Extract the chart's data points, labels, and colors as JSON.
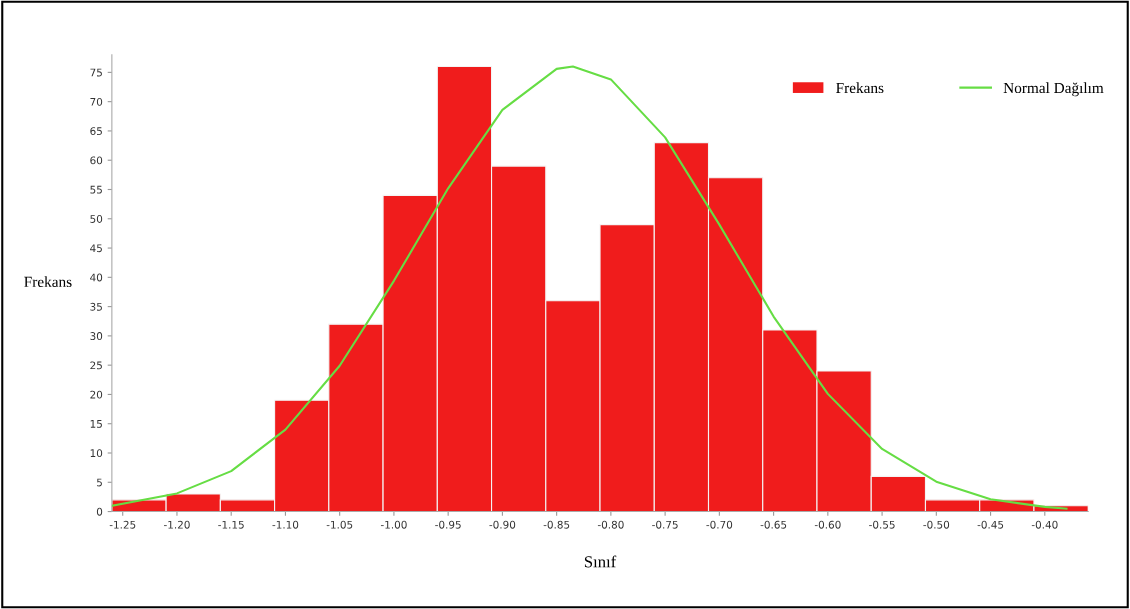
{
  "chart_data": {
    "type": "histogram",
    "xlabel": "Sınıf",
    "ylabel": "Frekans",
    "bins": [
      -1.26,
      -1.21,
      -1.16,
      -1.11,
      -1.06,
      -1.01,
      -0.96,
      -0.91,
      -0.86,
      -0.81,
      -0.76,
      -0.71,
      -0.66,
      -0.61,
      -0.56,
      -0.51,
      -0.46,
      -0.41,
      -0.36
    ],
    "series": [
      {
        "name": "Frekans",
        "color": "#f01c1c",
        "values": [
          2,
          3,
          2,
          19,
          32,
          54,
          76,
          59,
          36,
          49,
          63,
          57,
          31,
          24,
          6,
          2,
          2,
          1
        ]
      },
      {
        "name": "Normal Dağılım",
        "type": "line",
        "color": "#66dd44",
        "x": [
          -1.26,
          -1.2,
          -1.15,
          -1.1,
          -1.05,
          -1.0,
          -0.95,
          -0.9,
          -0.85,
          -0.835,
          -0.8,
          -0.75,
          -0.7,
          -0.65,
          -0.6,
          -0.55,
          -0.5,
          -0.45,
          -0.4,
          -0.38
        ],
        "values": [
          1.0,
          3.1,
          6.9,
          14.0,
          24.9,
          39.4,
          55.2,
          68.6,
          75.6,
          76,
          73.8,
          63.9,
          49.0,
          33.3,
          20.1,
          10.7,
          5.1,
          2.1,
          0.8,
          0.5
        ]
      }
    ],
    "xlim": [
      -1.26,
      -0.36
    ],
    "ylim": [
      0,
      78
    ],
    "xticks": [
      {
        "value": -1.25,
        "label": "-1.25"
      },
      {
        "value": -1.2,
        "label": "-1.20"
      },
      {
        "value": -1.15,
        "label": "-1.15"
      },
      {
        "value": -1.1,
        "label": "-1.10"
      },
      {
        "value": -1.05,
        "label": "-1.05"
      },
      {
        "value": -1.0,
        "label": "-1.00"
      },
      {
        "value": -0.95,
        "label": "-0.95"
      },
      {
        "value": -0.9,
        "label": "-0.90"
      },
      {
        "value": -0.85,
        "label": "-0.85"
      },
      {
        "value": -0.8,
        "label": "-0.80"
      },
      {
        "value": -0.75,
        "label": "-0.75"
      },
      {
        "value": -0.7,
        "label": "-0.70"
      },
      {
        "value": -0.65,
        "label": "-0.65"
      },
      {
        "value": -0.6,
        "label": "-0.60"
      },
      {
        "value": -0.55,
        "label": "-0.55"
      },
      {
        "value": -0.5,
        "label": "-0.50"
      },
      {
        "value": -0.45,
        "label": "-0.45"
      },
      {
        "value": -0.4,
        "label": "-0.40"
      }
    ],
    "yticks": [
      0,
      5,
      10,
      15,
      20,
      25,
      30,
      35,
      40,
      45,
      50,
      55,
      60,
      65,
      70,
      75
    ],
    "grid": false,
    "legend": "top right"
  }
}
